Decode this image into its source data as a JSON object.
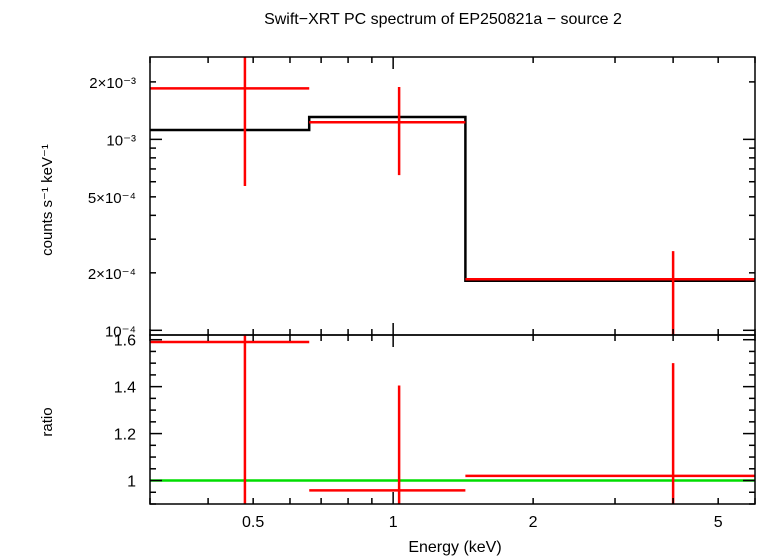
{
  "chart_data": {
    "type": "step-spectrum",
    "title": "Swift−XRT PC spectrum of EP250821a − source 2",
    "xlabel": "Energy (keV)",
    "x_scale": "log",
    "xlim": [
      0.3,
      6.0
    ],
    "x_tick_labels": [
      {
        "value": 0.5,
        "label": "0.5"
      },
      {
        "value": 1,
        "label": "1"
      },
      {
        "value": 2,
        "label": "2"
      },
      {
        "value": 5,
        "label": "5"
      }
    ],
    "top_panel": {
      "ylabel": "counts s⁻¹ keV⁻¹",
      "y_scale": "log",
      "ylim": [
        9.45e-05,
        0.0027
      ],
      "y_tick_labels": [
        {
          "value": 0.0001,
          "label": "10⁻⁴"
        },
        {
          "value": 0.0002,
          "label": "2×10⁻⁴"
        },
        {
          "value": 0.0005,
          "label": "5×10⁻⁴"
        },
        {
          "value": 0.001,
          "label": "10⁻³"
        },
        {
          "value": 0.002,
          "label": "2×10⁻³"
        }
      ],
      "data_points": [
        {
          "x": 0.48,
          "xlo": 0.3,
          "xhi": 0.66,
          "y": 0.00185,
          "ylo": 0.00057,
          "yhi": 0.0028
        },
        {
          "x": 1.03,
          "xlo": 0.66,
          "xhi": 1.43,
          "y": 0.00123,
          "ylo": 0.00065,
          "yhi": 0.00188
        },
        {
          "x": 4.0,
          "xlo": 1.43,
          "xhi": 6.0,
          "y": 0.000185,
          "ylo": 9.45e-05,
          "yhi": 0.00026
        }
      ],
      "model": [
        {
          "xlo": 0.3,
          "xhi": 0.66,
          "y": 0.00112
        },
        {
          "xlo": 0.66,
          "xhi": 1.43,
          "y": 0.00131
        },
        {
          "xlo": 1.43,
          "xhi": 6.0,
          "y": 0.000182
        }
      ]
    },
    "bottom_panel": {
      "ylabel": "ratio",
      "y_scale": "linear",
      "ylim": [
        0.9,
        1.62
      ],
      "y_tick_labels": [
        {
          "value": 1,
          "label": "1"
        },
        {
          "value": 1.2,
          "label": "1.2"
        },
        {
          "value": 1.4,
          "label": "1.4"
        },
        {
          "value": 1.6,
          "label": "1.6"
        }
      ],
      "reference_line": 1.0,
      "data_points": [
        {
          "x": 0.48,
          "xlo": 0.3,
          "xhi": 0.66,
          "y": 1.59,
          "ylo": 0.9,
          "yhi": 1.62
        },
        {
          "x": 1.03,
          "xlo": 0.66,
          "xhi": 1.43,
          "y": 0.958,
          "ylo": 0.9,
          "yhi": 1.405
        },
        {
          "x": 4.0,
          "xlo": 1.43,
          "xhi": 6.0,
          "y": 1.02,
          "ylo": 0.9,
          "yhi": 1.5
        }
      ]
    },
    "colors": {
      "data": "#ff0000",
      "model": "#000000",
      "reference": "#00dd00",
      "frame": "#000000"
    }
  }
}
